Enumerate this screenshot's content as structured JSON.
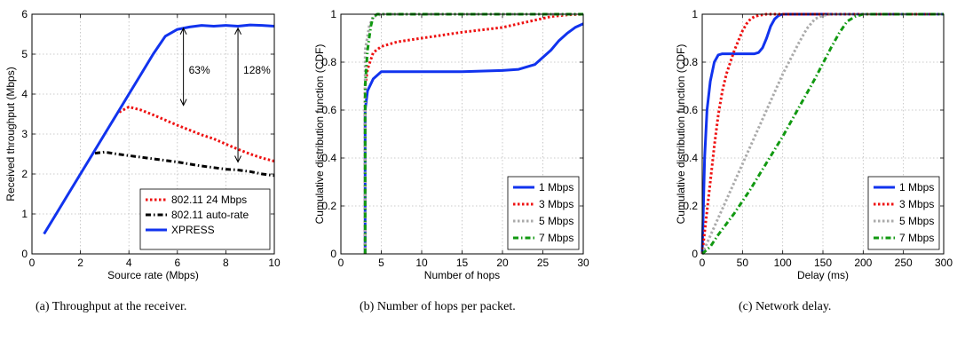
{
  "captions": [
    "(a) Throughput at the receiver.",
    "(b) Number of hops per packet.",
    "(c) Network delay."
  ],
  "chart_data": [
    {
      "type": "line",
      "xlabel": "Source rate (Mbps)",
      "ylabel": "Received throughput (Mbps)",
      "xlim": [
        0,
        10
      ],
      "ylim": [
        0,
        6
      ],
      "xticks": [
        0,
        2,
        4,
        6,
        8,
        10
      ],
      "yticks": [
        0,
        1,
        2,
        3,
        4,
        5,
        6
      ],
      "grid": true,
      "legend": "bottom-right",
      "series": [
        {
          "name": "802.11 24 Mbps",
          "color": "#ee1111",
          "style": "dotted",
          "x": [
            3.6,
            4.0,
            4.5,
            5.0,
            5.5,
            6.0,
            6.5,
            7.0,
            7.5,
            8.0,
            8.5,
            9.0,
            9.5,
            10.0
          ],
          "y": [
            3.55,
            3.68,
            3.6,
            3.48,
            3.35,
            3.22,
            3.1,
            2.98,
            2.88,
            2.75,
            2.62,
            2.5,
            2.4,
            2.32
          ]
        },
        {
          "name": "802.11 auto-rate",
          "color": "#000000",
          "style": "dashdot",
          "x": [
            2.6,
            3.0,
            3.5,
            4.0,
            4.5,
            5.0,
            5.5,
            6.0,
            6.5,
            7.0,
            7.5,
            8.0,
            8.5,
            9.0,
            9.5,
            10.0
          ],
          "y": [
            2.52,
            2.55,
            2.5,
            2.46,
            2.42,
            2.38,
            2.34,
            2.3,
            2.25,
            2.2,
            2.16,
            2.12,
            2.1,
            2.06,
            2.0,
            1.96
          ]
        },
        {
          "name": "XPRESS",
          "color": "#1133ee",
          "style": "solid",
          "x": [
            0.5,
            1.0,
            1.5,
            2.0,
            2.5,
            3.0,
            3.5,
            4.0,
            4.5,
            5.0,
            5.5,
            6.0,
            6.5,
            7.0,
            7.5,
            8.0,
            8.5,
            9.0,
            9.5,
            10.0
          ],
          "y": [
            0.5,
            1.0,
            1.5,
            2.0,
            2.5,
            3.0,
            3.5,
            4.0,
            4.5,
            5.0,
            5.45,
            5.62,
            5.68,
            5.72,
            5.7,
            5.72,
            5.7,
            5.73,
            5.72,
            5.7
          ]
        }
      ],
      "annotations": [
        {
          "text": "63%",
          "x": 6.25,
          "y_top": 5.65,
          "y_bottom": 3.72,
          "label_y": 4.6
        },
        {
          "text": "128%",
          "x": 8.5,
          "y_top": 5.65,
          "y_bottom": 2.3,
          "label_y": 4.6
        }
      ]
    },
    {
      "type": "line",
      "xlabel": "Number of hops",
      "ylabel": "Cumulative distribution function (CDF)",
      "xlim": [
        0,
        30
      ],
      "ylim": [
        0,
        1
      ],
      "xticks": [
        0,
        5,
        10,
        15,
        20,
        25,
        30
      ],
      "yticks": [
        0,
        0.2,
        0.4,
        0.6,
        0.8,
        1
      ],
      "grid": true,
      "legend": "bottom-right",
      "series": [
        {
          "name": "1 Mbps",
          "color": "#1133ee",
          "style": "solid",
          "x": [
            3,
            3,
            3.3,
            4,
            5,
            10,
            15,
            20,
            22,
            24,
            25,
            26,
            27,
            28,
            29,
            30
          ],
          "y": [
            0,
            0.6,
            0.68,
            0.73,
            0.76,
            0.76,
            0.76,
            0.765,
            0.77,
            0.79,
            0.82,
            0.85,
            0.89,
            0.92,
            0.945,
            0.96
          ]
        },
        {
          "name": "3 Mbps",
          "color": "#ee1111",
          "style": "dotted",
          "x": [
            3,
            3,
            3.3,
            4,
            5,
            7,
            10,
            15,
            20,
            22,
            24,
            26,
            28,
            30
          ],
          "y": [
            0,
            0.7,
            0.77,
            0.84,
            0.865,
            0.885,
            0.9,
            0.925,
            0.945,
            0.96,
            0.975,
            0.99,
            0.997,
            1
          ]
        },
        {
          "name": "5 Mbps",
          "color": "#aaaaaa",
          "style": "dotted",
          "x": [
            3,
            3,
            3.5,
            4,
            5,
            30
          ],
          "y": [
            0,
            0.85,
            0.95,
            0.99,
            1,
            1
          ]
        },
        {
          "name": "7 Mbps",
          "color": "#119911",
          "style": "dashdot",
          "x": [
            3,
            3,
            3.3,
            3.7,
            4,
            4.5,
            30
          ],
          "y": [
            0,
            0.7,
            0.85,
            0.95,
            0.99,
            1,
            1
          ]
        }
      ]
    },
    {
      "type": "line",
      "xlabel": "Delay (ms)",
      "ylabel": "Cumulative distribution function (CDF)",
      "xlim": [
        0,
        300
      ],
      "ylim": [
        0,
        1
      ],
      "xticks": [
        0,
        50,
        100,
        150,
        200,
        250,
        300
      ],
      "yticks": [
        0,
        0.2,
        0.4,
        0.6,
        0.8,
        1
      ],
      "grid": true,
      "legend": "bottom-right",
      "series": [
        {
          "name": "1 Mbps",
          "color": "#1133ee",
          "style": "solid",
          "x": [
            0,
            3,
            6,
            10,
            15,
            20,
            25,
            30,
            50,
            65,
            70,
            75,
            80,
            85,
            90,
            95,
            100,
            300
          ],
          "y": [
            0,
            0.4,
            0.6,
            0.72,
            0.8,
            0.83,
            0.835,
            0.835,
            0.835,
            0.835,
            0.84,
            0.86,
            0.9,
            0.95,
            0.98,
            0.995,
            1,
            1
          ]
        },
        {
          "name": "3 Mbps",
          "color": "#ee1111",
          "style": "dotted",
          "x": [
            0,
            5,
            10,
            15,
            20,
            25,
            30,
            35,
            40,
            45,
            50,
            55,
            60,
            65,
            70,
            80,
            90,
            300
          ],
          "y": [
            0,
            0.15,
            0.3,
            0.45,
            0.58,
            0.68,
            0.75,
            0.8,
            0.85,
            0.89,
            0.93,
            0.96,
            0.98,
            0.99,
            0.995,
            1,
            1,
            1
          ]
        },
        {
          "name": "5 Mbps",
          "color": "#aaaaaa",
          "style": "dotted",
          "x": [
            0,
            20,
            40,
            60,
            80,
            100,
            120,
            130,
            140,
            150,
            160,
            300
          ],
          "y": [
            0,
            0.15,
            0.3,
            0.45,
            0.6,
            0.75,
            0.88,
            0.94,
            0.98,
            0.995,
            1,
            1
          ]
        },
        {
          "name": "7 Mbps",
          "color": "#119911",
          "style": "dashdot",
          "x": [
            0,
            10,
            20,
            40,
            60,
            80,
            100,
            120,
            140,
            160,
            170,
            180,
            190,
            200,
            300
          ],
          "y": [
            0,
            0.03,
            0.08,
            0.17,
            0.27,
            0.38,
            0.49,
            0.61,
            0.73,
            0.86,
            0.92,
            0.97,
            0.99,
            1,
            1
          ]
        }
      ]
    }
  ]
}
